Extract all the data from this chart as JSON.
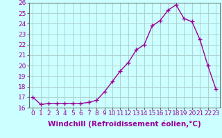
{
  "x": [
    0,
    1,
    2,
    3,
    4,
    5,
    6,
    7,
    8,
    9,
    10,
    11,
    12,
    13,
    14,
    15,
    16,
    17,
    18,
    19,
    20,
    21,
    22,
    23
  ],
  "y": [
    17.0,
    16.3,
    16.4,
    16.4,
    16.4,
    16.4,
    16.4,
    16.5,
    16.7,
    17.5,
    18.5,
    19.5,
    20.3,
    21.5,
    22.0,
    23.8,
    24.3,
    25.3,
    25.8,
    24.5,
    24.2,
    22.5,
    20.0,
    17.8
  ],
  "line_color": "#990099",
  "marker": "+",
  "marker_size": 4,
  "linewidth": 1.0,
  "markeredgewidth": 1.0,
  "xlabel": "Windchill (Refroidissement éolien,°C)",
  "xlabel_fontsize": 7.5,
  "ylim": [
    16,
    26
  ],
  "yticks": [
    16,
    17,
    18,
    19,
    20,
    21,
    22,
    23,
    24,
    25,
    26
  ],
  "xtick_labels": [
    "0",
    "1",
    "2",
    "3",
    "4",
    "5",
    "6",
    "7",
    "8",
    "9",
    "10",
    "11",
    "12",
    "13",
    "14",
    "15",
    "16",
    "17",
    "18",
    "19",
    "20",
    "21",
    "22",
    "23"
  ],
  "background_color": "#ccffff",
  "grid_color": "#aacccc",
  "tick_fontsize": 6.5,
  "spine_color": "#666666"
}
